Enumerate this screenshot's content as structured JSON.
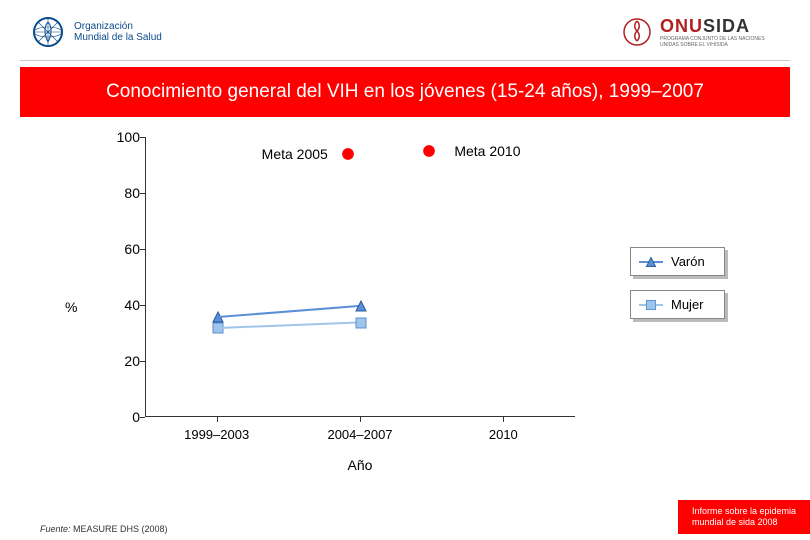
{
  "header": {
    "who_text_line1": "Organización",
    "who_text_line2": "Mundial de la Salud",
    "unaids_label": "ONUSIDA",
    "unaids_sub": "PROGRAMA CONJUNTO DE LAS NACIONES UNIDAS SOBRE EL VIH/SIDA"
  },
  "title": "Conocimiento general del VIH en los jóvenes (15-24 años), 1999–2007",
  "chart": {
    "type": "line",
    "ylabel": "%",
    "xlabel": "Año",
    "ylim": [
      0,
      100
    ],
    "ytick_step": 20,
    "yticks": [
      0,
      20,
      40,
      60,
      80,
      100
    ],
    "x_categories": [
      "1999–2003",
      "2004–2007",
      "2010"
    ],
    "series": [
      {
        "name": "Varón",
        "color": "#5a8fd6",
        "marker": "triangle",
        "data": [
          36,
          40,
          null
        ]
      },
      {
        "name": "Mujer",
        "color": "#9fc5e8",
        "marker": "square",
        "data": [
          32,
          34,
          null
        ]
      }
    ],
    "annotations": [
      {
        "label": "Meta 2005",
        "x_index": 0,
        "dx": 44,
        "y": 94,
        "marker_color": "#ff0000",
        "marker_dx": 130
      },
      {
        "label": "Meta 2010",
        "x_index": 2,
        "dx": -50,
        "y": 95,
        "marker_color": "#ff0000",
        "marker_dx": -75
      }
    ],
    "legend_position": "right",
    "background_color": "#ffffff",
    "axis_color": "#333333",
    "tick_fontsize": 14,
    "label_fontsize": 14
  },
  "source_prefix": "Fuente:",
  "source_text": " MEASURE DHS (2008)",
  "footer_badge_line1": "Informe sobre la epidemia",
  "footer_badge_line2": "mundial de sida 2008",
  "colors": {
    "title_bg": "#ff0000",
    "title_fg": "#ffffff",
    "who_blue": "#0b4a8c"
  }
}
